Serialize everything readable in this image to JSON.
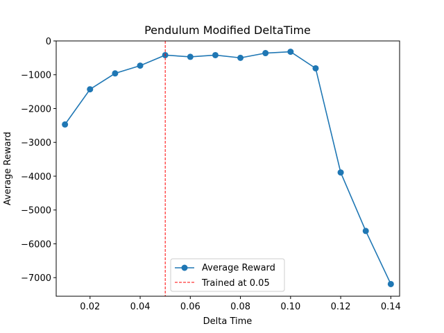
{
  "chart_data": {
    "type": "line",
    "title": "Pendulum Modified DeltaTime",
    "xlabel": "Delta Time",
    "ylabel": "Average Reward",
    "xlim": [
      0.0065,
      0.1435
    ],
    "ylim": [
      -7550,
      0
    ],
    "xticks": [
      0.02,
      0.04,
      0.06,
      0.08,
      0.1,
      0.12,
      0.14
    ],
    "xtick_labels": [
      "0.02",
      "0.04",
      "0.06",
      "0.08",
      "0.10",
      "0.12",
      "0.14"
    ],
    "yticks": [
      0,
      -1000,
      -2000,
      -3000,
      -4000,
      -5000,
      -6000,
      -7000
    ],
    "ytick_labels": [
      "0",
      "−1000",
      "−2000",
      "−3000",
      "−4000",
      "−5000",
      "−6000",
      "−7000"
    ],
    "grid": false,
    "legend_position": "lower-center",
    "series": [
      {
        "name": "Average Reward",
        "color": "#1f77b4",
        "marker": "circle",
        "x": [
          0.01,
          0.02,
          0.03,
          0.04,
          0.05,
          0.06,
          0.07,
          0.08,
          0.09,
          0.1,
          0.11,
          0.12,
          0.13,
          0.14
        ],
        "y": [
          -2470,
          -1430,
          -960,
          -730,
          -420,
          -470,
          -420,
          -500,
          -360,
          -320,
          -810,
          -3890,
          -5620,
          -7190
        ]
      }
    ],
    "reference_line": {
      "name": "Trained at 0.05",
      "x": 0.05,
      "color": "#ff0000",
      "style": "dashed"
    }
  }
}
